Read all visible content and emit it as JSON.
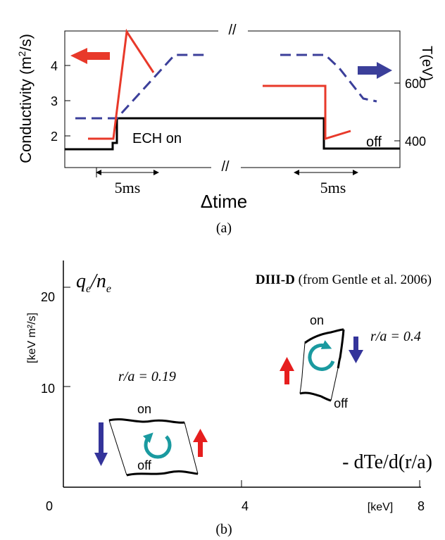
{
  "panel_a": {
    "ylabel_left_prefix": "Conductivity (m",
    "ylabel_left_sup": "2",
    "ylabel_left_suffix": "/s)",
    "yticks_left": [
      "4",
      "3",
      "2"
    ],
    "ylabel_right": "T(eV)",
    "yticks_right": [
      "600",
      "400"
    ],
    "axis_break": "//",
    "ech_on": "ECH  on",
    "ech_off": "off",
    "duration_left": "5ms",
    "duration_right": "5ms",
    "xlabel": "Δtime",
    "caption": "(a)",
    "colors": {
      "conductivity": "#e8392a",
      "temperature": "#3b3f9a",
      "ech_pulse": "#000000"
    }
  },
  "panel_b": {
    "ylabel_q": "q",
    "ylabel_e1": "e",
    "ylabel_slash": "/",
    "ylabel_n": "n",
    "ylabel_e2": "e",
    "yunits": "[keV m²/s]",
    "yticks": [
      "20",
      "10"
    ],
    "xtick_labels": [
      "0",
      "4",
      "8"
    ],
    "xunits": "[keV]",
    "xlabel": "- dTe/d(r/a)",
    "source_bold": "DIII-D",
    "source_rest": " (from Gentle et al. 2006)",
    "loop1": {
      "radius_label": "r/a = 0.19",
      "on": "on",
      "off": "off"
    },
    "loop2": {
      "radius_label": "r/a = 0.4",
      "on": "on",
      "off": "off"
    },
    "caption": "(b)",
    "colors": {
      "cycle_arrow": "#1a9aa0",
      "up_arrow": "#e61e1e",
      "down_arrow": "#34349a"
    }
  }
}
